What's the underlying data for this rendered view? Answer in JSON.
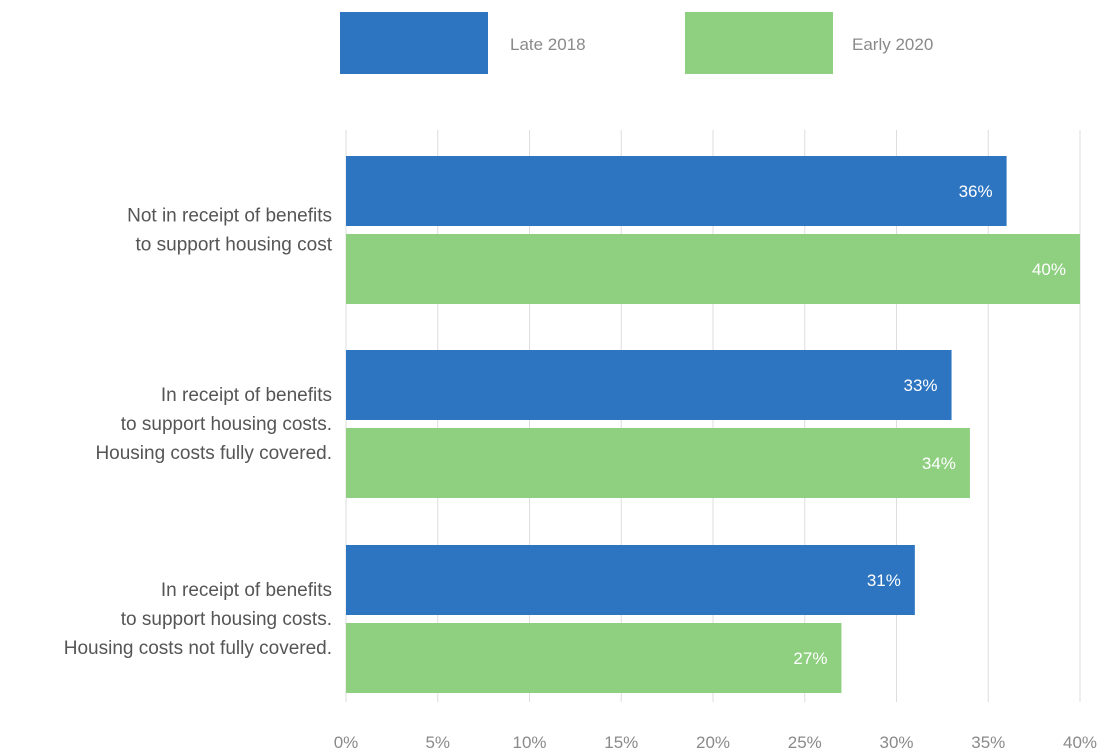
{
  "chart_data": {
    "type": "bar",
    "orientation": "horizontal",
    "categories": [
      [
        "Not in receipt of benefits",
        "to support housing cost"
      ],
      [
        "In receipt of benefits",
        "to support housing costs.",
        "Housing costs fully covered."
      ],
      [
        "In receipt of benefits",
        "to support housing costs.",
        "Housing costs not fully covered."
      ]
    ],
    "series": [
      {
        "name": "Late 2018",
        "color": "#2e75c1",
        "values": [
          36,
          33,
          31
        ],
        "labels": [
          "36%",
          "33%",
          "31%"
        ]
      },
      {
        "name": "Early 2020",
        "color": "#8fcf80",
        "values": [
          40,
          34,
          27
        ],
        "labels": [
          "40%",
          "34%",
          "27%"
        ]
      }
    ],
    "xlim": [
      0,
      40
    ],
    "xticks": [
      0,
      5,
      10,
      15,
      20,
      25,
      30,
      35,
      40
    ],
    "xtick_labels": [
      "0%",
      "5%",
      "10%",
      "15%",
      "20%",
      "25%",
      "30%",
      "35%",
      "40%"
    ],
    "grid": true,
    "legend_position": "top",
    "title": "",
    "xlabel": "",
    "ylabel": ""
  }
}
